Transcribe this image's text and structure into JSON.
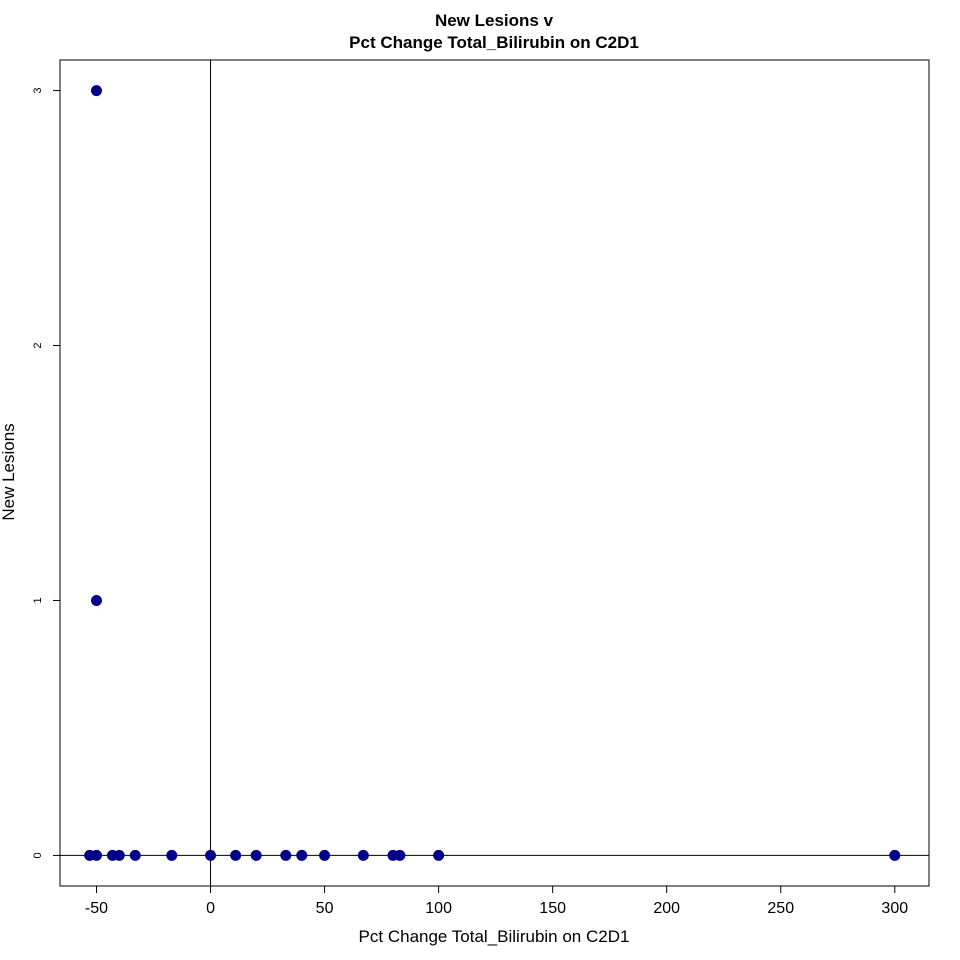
{
  "chart_data": {
    "type": "scatter",
    "title": [
      "New Lesions v",
      "Pct Change Total_Bilirubin on C2D1"
    ],
    "xlabel": "Pct Change Total_Bilirubin on C2D1",
    "ylabel": "New Lesions",
    "xlim": [
      -66,
      315
    ],
    "ylim": [
      -0.12,
      3.12
    ],
    "x_ticks": [
      -50,
      0,
      50,
      100,
      150,
      200,
      250,
      300
    ],
    "y_ticks": [
      0,
      1,
      2,
      3
    ],
    "reference_lines": {
      "vertical_x": 0,
      "horizontal_y": 0
    },
    "grid": false,
    "legend": "none",
    "point_color": "#00008B",
    "points": [
      {
        "x": -50,
        "y": 3
      },
      {
        "x": -50,
        "y": 1
      },
      {
        "x": -53,
        "y": 0
      },
      {
        "x": -50,
        "y": 0
      },
      {
        "x": -43,
        "y": 0
      },
      {
        "x": -40,
        "y": 0
      },
      {
        "x": -33,
        "y": 0
      },
      {
        "x": -17,
        "y": 0
      },
      {
        "x": 0,
        "y": 0
      },
      {
        "x": 11,
        "y": 0
      },
      {
        "x": 20,
        "y": 0
      },
      {
        "x": 33,
        "y": 0
      },
      {
        "x": 40,
        "y": 0
      },
      {
        "x": 50,
        "y": 0
      },
      {
        "x": 67,
        "y": 0
      },
      {
        "x": 80,
        "y": 0
      },
      {
        "x": 83,
        "y": 0
      },
      {
        "x": 100,
        "y": 0
      },
      {
        "x": 300,
        "y": 0
      }
    ]
  }
}
